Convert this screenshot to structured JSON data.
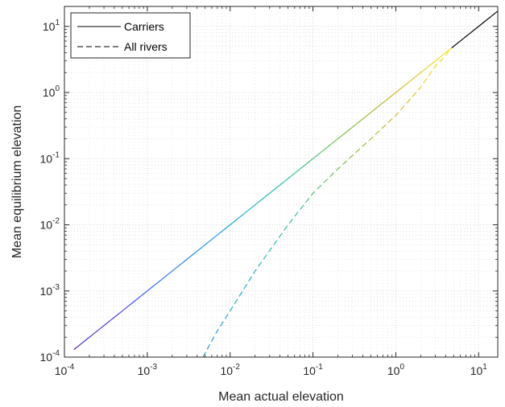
{
  "chart_data": {
    "type": "line",
    "title": "",
    "xlabel": "Mean actual elevation",
    "ylabel": "Mean equilibrium elevation",
    "xscale": "log",
    "yscale": "log",
    "xlim": [
      0.0001,
      17
    ],
    "ylim": [
      0.0001,
      20
    ],
    "xticks": [
      {
        "base": "10",
        "exp": "-4"
      },
      {
        "base": "10",
        "exp": "-3"
      },
      {
        "base": "10",
        "exp": "-2"
      },
      {
        "base": "10",
        "exp": "-1"
      },
      {
        "base": "10",
        "exp": "0"
      },
      {
        "base": "10",
        "exp": "1"
      }
    ],
    "yticks": [
      {
        "base": "10",
        "exp": "-4"
      },
      {
        "base": "10",
        "exp": "-3"
      },
      {
        "base": "10",
        "exp": "-2"
      },
      {
        "base": "10",
        "exp": "-1"
      },
      {
        "base": "10",
        "exp": "0"
      },
      {
        "base": "10",
        "exp": "1"
      }
    ],
    "grid": true,
    "minor_grid": true,
    "legend_position": "top-left",
    "series": [
      {
        "name": "Carriers",
        "style": "solid",
        "x": [
          0.00013,
          0.001,
          0.01,
          0.1,
          0.5,
          1.0,
          2.0,
          3.0,
          4.5,
          8.0,
          17.0
        ],
        "y": [
          0.00013,
          0.001,
          0.01,
          0.1,
          0.5,
          1.0,
          2.0,
          3.0,
          4.5,
          8.0,
          17.0
        ]
      },
      {
        "name": "All rivers",
        "style": "dashed",
        "x": [
          0.0047,
          0.007,
          0.01,
          0.02,
          0.05,
          0.1,
          0.2,
          0.5,
          1.0,
          2.0,
          2.5,
          3.0,
          4.0,
          4.5
        ],
        "y": [
          0.0001,
          0.00025,
          0.0005,
          0.002,
          0.01,
          0.03,
          0.07,
          0.2,
          0.45,
          1.2,
          1.8,
          2.5,
          3.6,
          4.5
        ]
      }
    ],
    "colormap": [
      "#3e26a8",
      "#4743f8",
      "#2c7ef8",
      "#1ba9da",
      "#2bc0a0",
      "#7bbf4d",
      "#d1b822",
      "#f5e61b",
      "#000000"
    ]
  }
}
